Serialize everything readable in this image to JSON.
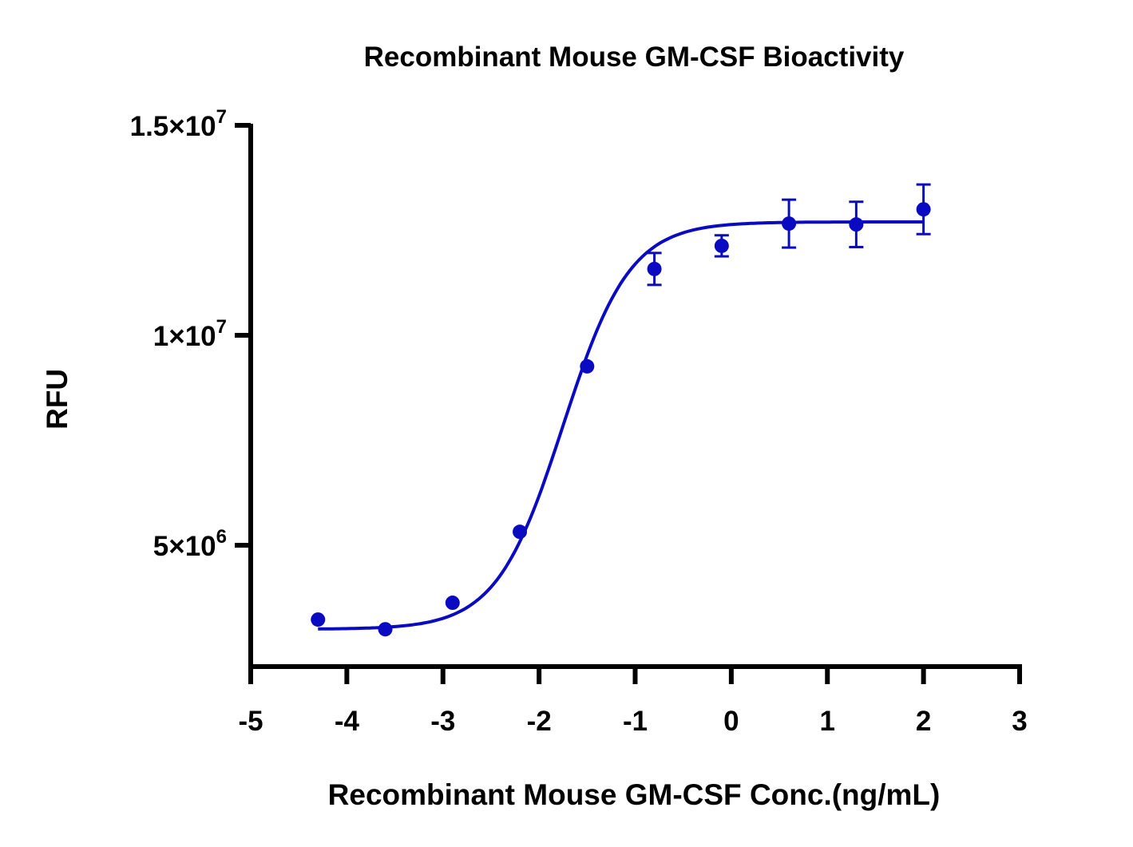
{
  "chart_data": {
    "type": "scatter",
    "title": "Recombinant Mouse GM-CSF Bioactivity",
    "xlabel": "Recombinant Mouse GM-CSF Conc.(ng/mL)",
    "ylabel": "RFU",
    "xlim": [
      -5,
      3
    ],
    "ylim": [
      2100000,
      15000000
    ],
    "x_ticks": [
      -5,
      -4,
      -3,
      -2,
      -1,
      0,
      1,
      2,
      3
    ],
    "x_tick_labels": [
      "-5",
      "-4",
      "-3",
      "-2",
      "-1",
      "0",
      "1",
      "2",
      "3"
    ],
    "y_ticks": [
      {
        "value": 15000000,
        "mantissa": "1.5×10",
        "exponent": "7"
      },
      {
        "value": 10000000,
        "mantissa": "1×10",
        "exponent": "7"
      },
      {
        "value": 5000000,
        "mantissa": "5×10",
        "exponent": "6"
      }
    ],
    "grid": false,
    "color": "#0a0ac2",
    "points": [
      {
        "x": -4.3,
        "y": 3230000,
        "err": 0
      },
      {
        "x": -3.6,
        "y": 3000000,
        "err": 0
      },
      {
        "x": -2.9,
        "y": 3630000,
        "err": 0
      },
      {
        "x": -2.2,
        "y": 5320000,
        "err": 0
      },
      {
        "x": -1.5,
        "y": 9260000,
        "err": 0
      },
      {
        "x": -0.8,
        "y": 11580000,
        "err": 380000
      },
      {
        "x": -0.1,
        "y": 12130000,
        "err": 250000
      },
      {
        "x": 0.6,
        "y": 12660000,
        "err": 570000
      },
      {
        "x": 1.3,
        "y": 12640000,
        "err": 540000
      },
      {
        "x": 2.0,
        "y": 13000000,
        "err": 590000
      }
    ],
    "fit": {
      "model": "4PL",
      "bottom": 3000000,
      "top": 12700000,
      "logEC50": -1.75,
      "hill": 1.25,
      "x_range": [
        -4.3,
        2.0
      ]
    }
  }
}
